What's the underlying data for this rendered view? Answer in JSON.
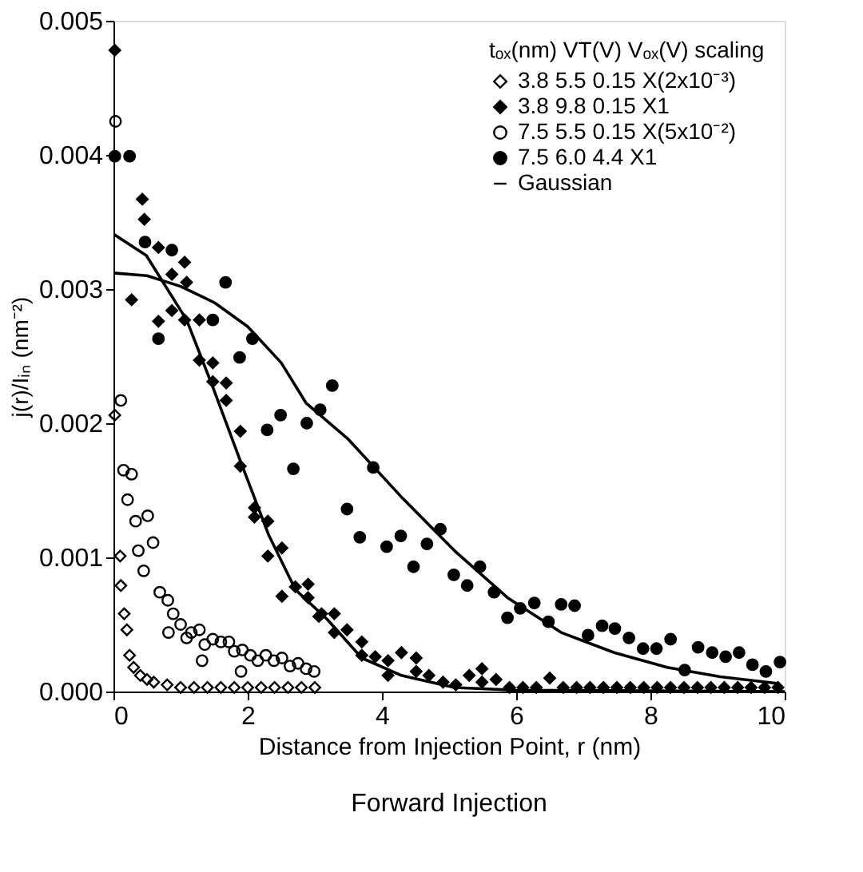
{
  "chart_data": {
    "type": "scatter",
    "xlabel": "Distance from Injection Point, r (nm)",
    "ylabel": "j(r)/Iᵢₙ (nm⁻²)",
    "legend_title": "tₒₓ(nm) VT(V) Vₒₓ(V) scaling",
    "annotations": [
      "Forward Injection"
    ],
    "xlim": [
      0,
      10
    ],
    "xticks": [
      0,
      2,
      4,
      6,
      8,
      10
    ],
    "ylim": [
      0,
      0.005
    ],
    "yticks": [
      {
        "value": 0,
        "label": "0.000"
      },
      {
        "value": 0.001,
        "label": "0.001"
      },
      {
        "value": 0.002,
        "label": "0.002"
      },
      {
        "value": 0.003,
        "label": "0.003"
      },
      {
        "value": 0.004,
        "label": "0.004"
      },
      {
        "value": 0.005,
        "label": "0.005"
      }
    ],
    "grid": false,
    "legend": "top right",
    "series": [
      {
        "name": "3.8 5.5 0.15 X(2x10⁻³)",
        "marker": "diamond",
        "color": "#000000",
        "x": [
          0.02,
          0.1,
          0.11,
          0.16,
          0.2,
          0.24,
          0.3,
          0.4,
          0.5,
          0.6,
          0.8,
          1.0,
          1.2,
          1.4,
          1.6,
          1.8,
          2.0,
          2.2,
          2.4,
          2.6,
          2.8,
          3.0
        ],
        "values": [
          0.00206,
          0.00101,
          0.00079,
          0.00058,
          0.00046,
          0.00027,
          0.00018,
          0.00012,
          9e-05,
          7e-05,
          5e-05,
          3e-05,
          3e-05,
          3e-05,
          3e-05,
          3e-05,
          3e-05,
          3e-05,
          3e-05,
          3e-05,
          3e-05,
          3e-05
        ]
      },
      {
        "name": "3.8 9.8 0.15 X1",
        "marker": "diamond",
        "color": "#000000",
        "x": [
          0.02,
          0.27,
          0.43,
          0.46,
          0.67,
          0.67,
          0.87,
          0.87,
          1.06,
          1.06,
          1.09,
          1.28,
          1.28,
          1.48,
          1.48,
          1.68,
          1.68,
          1.89,
          1.89,
          2.1,
          2.1,
          2.3,
          2.3,
          2.51,
          2.51,
          2.71,
          2.9,
          2.9,
          3.06,
          3.1,
          3.29,
          3.29,
          3.48,
          3.7,
          3.7,
          3.9,
          4.09,
          4.09,
          4.29,
          4.51,
          4.51,
          4.7,
          4.91,
          5.1,
          5.3,
          5.49,
          5.49,
          5.7,
          5.9,
          6.1,
          6.3,
          6.5,
          6.7,
          6.9,
          7.1,
          7.3,
          7.5,
          7.7,
          7.9,
          8.1,
          8.3,
          8.5,
          8.7,
          8.9,
          9.1,
          9.3,
          9.5,
          9.7,
          9.9
        ],
        "values": [
          0.00478,
          0.00292,
          0.00367,
          0.00352,
          0.00276,
          0.00331,
          0.00311,
          0.00284,
          0.0032,
          0.00277,
          0.00305,
          0.00277,
          0.00247,
          0.00245,
          0.00231,
          0.0023,
          0.00217,
          0.00194,
          0.00168,
          0.00137,
          0.0013,
          0.00127,
          0.00101,
          0.00107,
          0.00071,
          0.00078,
          0.0008,
          0.0007,
          0.00056,
          0.00058,
          0.00058,
          0.00044,
          0.00046,
          0.00037,
          0.00027,
          0.00026,
          0.00023,
          0.00012,
          0.00029,
          0.00025,
          0.00015,
          0.00012,
          7e-05,
          5e-05,
          0.00012,
          0.00017,
          7e-05,
          9e-05,
          3e-05,
          3e-05,
          3e-05,
          0.0001,
          3e-05,
          3e-05,
          3e-05,
          3e-05,
          3e-05,
          3e-05,
          3e-05,
          3e-05,
          3e-05,
          3e-05,
          3e-05,
          3e-05,
          3e-05,
          3e-05,
          3e-05,
          3e-05,
          3e-05
        ]
      },
      {
        "name": "7.5 5.5 0.15 X(5x10⁻²)",
        "marker": "circle",
        "color": "#000000",
        "x": [
          0.03,
          0.11,
          0.15,
          0.21,
          0.27,
          0.33,
          0.37,
          0.45,
          0.51,
          0.59,
          0.69,
          0.81,
          0.82,
          0.89,
          1.0,
          1.09,
          1.16,
          1.28,
          1.32,
          1.36,
          1.48,
          1.6,
          1.72,
          1.8,
          1.9,
          1.92,
          2.04,
          2.15,
          2.27,
          2.39,
          2.51,
          2.63,
          2.75,
          2.87,
          2.99
        ],
        "values": [
          0.00425,
          0.00217,
          0.00165,
          0.00143,
          0.00162,
          0.00127,
          0.00105,
          0.0009,
          0.00131,
          0.00111,
          0.00074,
          0.00068,
          0.00044,
          0.00058,
          0.0005,
          0.0004,
          0.00044,
          0.00046,
          0.00023,
          0.00035,
          0.00039,
          0.00037,
          0.00037,
          0.0003,
          0.00015,
          0.00031,
          0.00027,
          0.00023,
          0.00027,
          0.00023,
          0.00025,
          0.00019,
          0.00021,
          0.00017,
          0.00015
        ]
      },
      {
        "name": "7.5 6.0 4.4 X1",
        "marker": "circle",
        "color": "#000000",
        "x": [
          0.02,
          0.24,
          0.47,
          0.67,
          0.87,
          1.48,
          1.67,
          1.88,
          2.07,
          2.29,
          2.49,
          2.68,
          2.88,
          3.08,
          3.26,
          3.48,
          3.67,
          3.87,
          4.07,
          4.28,
          4.47,
          4.67,
          4.87,
          5.07,
          5.27,
          5.46,
          5.67,
          5.87,
          6.06,
          6.27,
          6.48,
          6.67,
          6.87,
          7.07,
          7.28,
          7.47,
          7.68,
          7.89,
          8.09,
          8.3,
          8.51,
          8.71,
          8.92,
          9.12,
          9.32,
          9.52,
          9.72,
          9.93
        ],
        "values": [
          0.00399,
          0.00399,
          0.00335,
          0.00263,
          0.00329,
          0.00277,
          0.00305,
          0.00249,
          0.00263,
          0.00195,
          0.00206,
          0.00166,
          0.002,
          0.0021,
          0.00228,
          0.00136,
          0.00115,
          0.00167,
          0.00108,
          0.00116,
          0.00093,
          0.0011,
          0.00121,
          0.00087,
          0.00079,
          0.00093,
          0.00074,
          0.00055,
          0.00062,
          0.00066,
          0.00052,
          0.00065,
          0.00064,
          0.00042,
          0.00049,
          0.00047,
          0.0004,
          0.00032,
          0.00032,
          0.00039,
          0.00016,
          0.00033,
          0.00029,
          0.00026,
          0.00029,
          0.0002,
          0.00015,
          0.00022
        ]
      },
      {
        "name": "Gaussian",
        "type": "line",
        "marker": "none",
        "line_style": "solid",
        "color": "#000000",
        "x": [
          0,
          0.49,
          1.09,
          1.48,
          1.89,
          2.31,
          2.71,
          3.18,
          3.7,
          4.29,
          5.08,
          6,
          10
        ],
        "values": [
          0.00341,
          0.00325,
          0.00277,
          0.00227,
          0.00172,
          0.00117,
          0.00076,
          0.00054,
          0.00025,
          0.00012,
          3e-05,
          1e-05,
          0
        ]
      },
      {
        "type": "line",
        "line_style": "solid",
        "color": "#000000",
        "x": [
          0,
          0.5,
          1.0,
          1.5,
          2.0,
          2.5,
          2.87,
          3.5,
          4.29,
          5.08,
          5.87,
          6.67,
          7.46,
          8.25,
          9.04,
          9.91
        ],
        "values": [
          0.00312,
          0.0031,
          0.00302,
          0.0029,
          0.00272,
          0.00245,
          0.00215,
          0.00188,
          0.00145,
          0.00105,
          0.0007,
          0.00044,
          0.00029,
          0.00018,
          0.00011,
          6e-05
        ]
      }
    ]
  }
}
